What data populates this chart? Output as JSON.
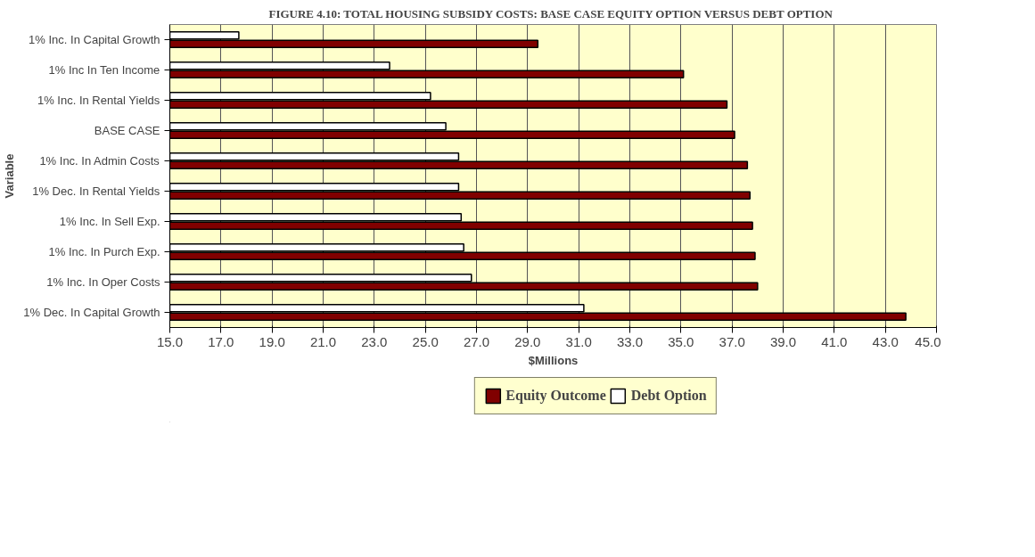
{
  "chart_data": {
    "type": "bar",
    "orientation": "horizontal",
    "title": "FIGURE 4.10: TOTAL HOUSING SUBSIDY COSTS: BASE CASE  EQUITY OPTION VERSUS DEBT OPTION",
    "xlabel": "$Millions",
    "ylabel": "Variable",
    "categories": [
      "1% Inc. In Capital Growth",
      "1% Inc In Ten Income",
      "1% Inc. In Rental Yields",
      "BASE CASE",
      "1% Inc. In Admin Costs",
      "1% Dec. In Rental Yields",
      "1% Inc. In Sell Exp.",
      "1% Inc. In Purch Exp.",
      "1% Inc. In Oper Costs",
      "1% Dec. In Capital Growth"
    ],
    "series": [
      {
        "name": "Equity Outcome",
        "color": "#800000",
        "values": [
          29.4,
          35.1,
          36.8,
          37.1,
          37.6,
          37.7,
          37.8,
          37.9,
          38.0,
          43.8
        ]
      },
      {
        "name": "Debt Option",
        "color": "#ffffff",
        "values": [
          17.7,
          23.6,
          25.2,
          25.8,
          26.3,
          26.3,
          26.4,
          26.5,
          26.8,
          31.2
        ]
      }
    ],
    "xlim": [
      15,
      45
    ],
    "xticks": [
      {
        "value": 15,
        "label": "15.0"
      },
      {
        "value": 17,
        "label": "17.0"
      },
      {
        "value": 19,
        "label": "19.0"
      },
      {
        "value": 21,
        "label": "21.0"
      },
      {
        "value": 23,
        "label": "23.0"
      },
      {
        "value": 25,
        "label": "25.0"
      },
      {
        "value": 27,
        "label": "27.0"
      },
      {
        "value": 29,
        "label": "29.0"
      },
      {
        "value": 31,
        "label": "31.0"
      },
      {
        "value": 33,
        "label": "33.0"
      },
      {
        "value": 35,
        "label": "35.0"
      },
      {
        "value": 37,
        "label": "37.0"
      },
      {
        "value": 39,
        "label": "39.0"
      },
      {
        "value": 41,
        "label": "41.0"
      },
      {
        "value": 43,
        "label": "43.0"
      },
      {
        "value": 45,
        "label": "45.0"
      }
    ],
    "grid": "x",
    "legend": "bottom"
  }
}
